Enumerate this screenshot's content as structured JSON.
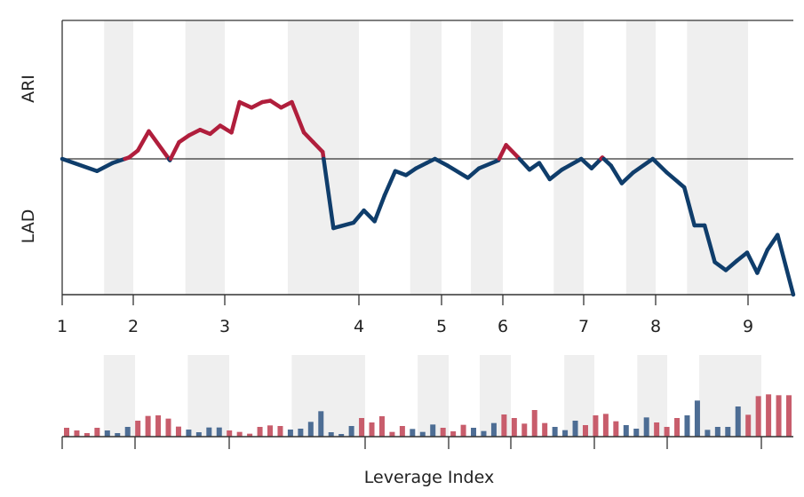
{
  "chart_data": [
    {
      "type": "line",
      "xlabel": "Leverage Index",
      "ylabel_top": "ARI",
      "ylabel_bottom": "LAD",
      "xticks": [
        "1",
        "2",
        "3",
        "4",
        "5",
        "6",
        "7",
        "8",
        "9"
      ],
      "xlim": [
        1,
        9.49
      ],
      "ylim": [
        -1,
        1
      ],
      "baseline": 0,
      "colors": {
        "above": "#b01e3c",
        "below": "#0f3d6b",
        "band": "#efefef",
        "axis": "#333333"
      },
      "shaded_bands": [
        [
          1.59,
          2.0
        ],
        [
          2.57,
          3.0
        ],
        [
          3.47,
          4.0
        ],
        [
          4.62,
          5.0
        ],
        [
          5.48,
          6.0
        ],
        [
          6.63,
          7.0
        ],
        [
          7.59,
          8.0
        ],
        [
          8.34,
          9.0
        ]
      ],
      "x": [
        1.0,
        1.49,
        1.71,
        1.94,
        2.05,
        2.17,
        2.4,
        2.5,
        2.61,
        2.73,
        2.84,
        2.95,
        3.05,
        3.11,
        3.2,
        3.28,
        3.34,
        3.42,
        3.5,
        3.59,
        3.66,
        3.73,
        3.81,
        3.96,
        4.06,
        4.19,
        4.31,
        4.44,
        4.57,
        4.69,
        4.82,
        4.92,
        5.1,
        5.43,
        5.61,
        5.93,
        6.04,
        6.19,
        6.33,
        6.45,
        6.58,
        6.73,
        6.97,
        7.11,
        7.26,
        7.38,
        7.53,
        7.69,
        7.96,
        8.12,
        8.31,
        8.42,
        8.53,
        8.64,
        8.76,
        8.88,
        8.99,
        9.1,
        9.21,
        9.32,
        9.49
      ],
      "y": [
        0,
        -0.09,
        -0.03,
        0.01,
        0.06,
        0.2,
        -0.01,
        0.12,
        0.17,
        0.21,
        0.18,
        0.24,
        0.19,
        0.41,
        0.37,
        0.41,
        0.42,
        0.37,
        0.41,
        0.19,
        0.12,
        0.05,
        -0.51,
        -0.47,
        -0.38,
        -0.46,
        -0.27,
        -0.09,
        -0.12,
        -0.07,
        -0.03,
        0,
        -0.05,
        -0.14,
        -0.07,
        -0.01,
        0.1,
        0.01,
        -0.08,
        -0.03,
        -0.15,
        -0.08,
        0,
        -0.07,
        0.01,
        -0.05,
        -0.18,
        -0.1,
        0,
        -0.1,
        -0.21,
        -0.49,
        -0.49,
        -0.76,
        -0.82,
        -0.75,
        -0.69,
        -0.84,
        -0.67,
        -0.56,
        -1.0
      ]
    },
    {
      "type": "bar",
      "xlabel": "Leverage Index",
      "ylim": [
        0,
        15
      ],
      "colors": {
        "pos": "#c85d6c",
        "neg": "#4d6d94"
      },
      "shaded_bands": [
        [
          1.57,
          2.0
        ],
        [
          2.56,
          3.0
        ],
        [
          3.46,
          4.0
        ],
        [
          4.63,
          5.0
        ],
        [
          5.5,
          6.0
        ],
        [
          6.64,
          7.0
        ],
        [
          7.59,
          8.0
        ],
        [
          8.34,
          9.0
        ]
      ],
      "values": [
        3.0,
        2.1,
        1.2,
        3.0,
        2.1,
        1.2,
        3.3,
        5.4,
        7.0,
        7.2,
        6.1,
        3.4,
        2.4,
        1.5,
        3.1,
        3.1,
        2.1,
        1.6,
        1.0,
        3.3,
        3.8,
        3.6,
        2.4,
        2.7,
        5.0,
        8.6,
        1.5,
        0.9,
        3.6,
        6.3,
        4.8,
        6.9,
        1.6,
        3.6,
        2.6,
        1.6,
        4.1,
        3.0,
        1.8,
        4.0,
        3.0,
        1.9,
        4.6,
        7.5,
        6.3,
        4.4,
        9.0,
        4.6,
        3.3,
        2.2,
        5.4,
        3.9,
        7.2,
        7.7,
        5.2,
        3.9,
        2.7,
        6.5,
        4.8,
        3.3,
        6.3,
        7.2,
        12.2,
        2.3,
        3.3,
        3.3,
        10.2,
        7.4,
        13.7,
        14.3,
        14.0,
        14.0
      ],
      "signs": [
        "r",
        "r",
        "r",
        "r",
        "b",
        "b",
        "b",
        "r",
        "r",
        "r",
        "r",
        "r",
        "b",
        "b",
        "b",
        "b",
        "r",
        "r",
        "r",
        "r",
        "r",
        "r",
        "b",
        "b",
        "b",
        "b",
        "b",
        "b",
        "b",
        "r",
        "r",
        "r",
        "r",
        "r",
        "b",
        "b",
        "b",
        "r",
        "r",
        "r",
        "b",
        "b",
        "b",
        "r",
        "r",
        "r",
        "r",
        "r",
        "b",
        "b",
        "b",
        "r",
        "r",
        "r",
        "r",
        "b",
        "b",
        "b",
        "r",
        "r",
        "r",
        "b",
        "b",
        "b",
        "b",
        "b",
        "b",
        "r",
        "r",
        "r",
        "r",
        "r"
      ]
    }
  ]
}
